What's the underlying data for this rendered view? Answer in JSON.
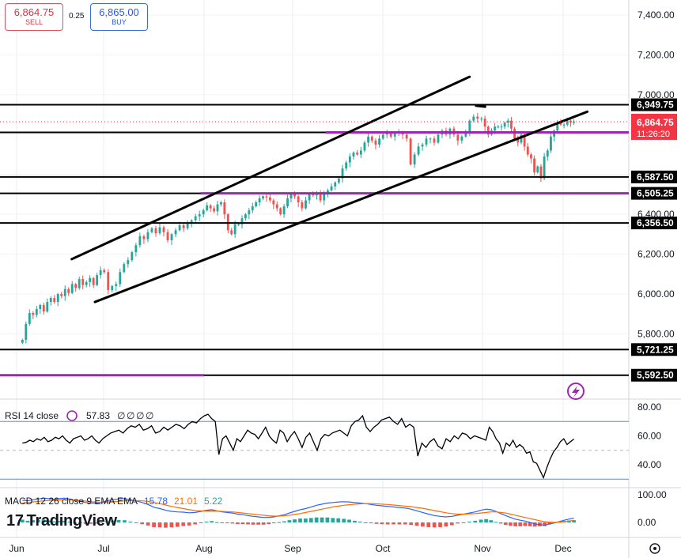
{
  "quote": {
    "sell_price": "6,864.75",
    "sell_label": "SELL",
    "spread": "0.25",
    "buy_price": "6,865.00",
    "buy_label": "BUY"
  },
  "brand": "TradingView",
  "colors": {
    "up": "#26a69a",
    "down": "#ef5350",
    "level_line": "#000000",
    "purple_level": "#9c27b0",
    "price_tag": "#f23645",
    "rsi_line": "#000000",
    "macd_line": "#2962ff",
    "signal_line": "#ff6d00"
  },
  "chart_data": [
    {
      "type": "candlestick",
      "title": "",
      "x_tick_labels": [
        "Jun",
        "Jul",
        "Aug",
        "Sep",
        "Oct",
        "Nov",
        "Dec"
      ],
      "y_tick_labels": [
        "7,400.00",
        "7,200.00",
        "7,000.00",
        "6,800.00",
        "6,600.00",
        "6,400.00",
        "6,200.00",
        "6,000.00",
        "5,800.00"
      ],
      "ylim": [
        5740,
        7460
      ],
      "grid": true,
      "price_series_close": [
        5770,
        5850,
        5905,
        5895,
        5925,
        5945,
        5912,
        5960,
        5980,
        5960,
        6000,
        5990,
        6025,
        6005,
        6050,
        6030,
        6075,
        6045,
        6060,
        6080,
        6045,
        6095,
        6120,
        6110,
        6020,
        6040,
        6050,
        6110,
        6150,
        6170,
        6210,
        6245,
        6290,
        6275,
        6310,
        6330,
        6305,
        6335,
        6310,
        6270,
        6300,
        6320,
        6345,
        6330,
        6355,
        6370,
        6390,
        6400,
        6420,
        6445,
        6430,
        6415,
        6450,
        6460,
        6400,
        6320,
        6300,
        6350,
        6350,
        6380,
        6400,
        6420,
        6440,
        6460,
        6480,
        6490,
        6485,
        6470,
        6450,
        6430,
        6400,
        6440,
        6480,
        6500,
        6490,
        6460,
        6430,
        6470,
        6500,
        6495,
        6510,
        6470,
        6500,
        6520,
        6540,
        6560,
        6580,
        6630,
        6660,
        6690,
        6710,
        6700,
        6720,
        6760,
        6790,
        6770,
        6750,
        6780,
        6800,
        6810,
        6790,
        6805,
        6810,
        6800,
        6780,
        6650,
        6700,
        6740,
        6750,
        6780,
        6780,
        6760,
        6800,
        6820,
        6800,
        6830,
        6800,
        6770,
        6790,
        6810,
        6870,
        6890,
        6880,
        6880,
        6840,
        6800,
        6820,
        6840,
        6840,
        6840,
        6860,
        6870,
        6830,
        6780,
        6760,
        6800,
        6740,
        6700,
        6680,
        6610,
        6640,
        6580,
        6690,
        6720,
        6790,
        6820,
        6860,
        6850,
        6850,
        6870,
        6860,
        6865
      ],
      "price_levels": [
        {
          "label": "6,949.75",
          "value": 6949.75,
          "color": "#000000"
        },
        {
          "label": "6,811.25",
          "value": 6811.25,
          "color": "#000000"
        },
        {
          "label": "6,587.50",
          "value": 6587.5,
          "color": "#000000"
        },
        {
          "label": "6,505.25",
          "value": 6505.25,
          "color": "#000000"
        },
        {
          "label": "6,356.50",
          "value": 6356.5,
          "color": "#000000"
        },
        {
          "label": "5,721.25",
          "value": 5721.25,
          "color": "#000000"
        },
        {
          "label": "5,592.50",
          "value": 5592.5,
          "color": "#000000"
        }
      ],
      "purple_levels": [
        6811.25,
        6505.25,
        5592.5
      ],
      "current_price": {
        "label": "6,864.75",
        "countdown": "11:26:20",
        "value": 6864.75
      },
      "trend_channel": {
        "upper": [
          {
            "date": "Jun 20",
            "value": 6175
          },
          {
            "date": "Oct 28",
            "value": 7090
          }
        ],
        "lower": [
          {
            "date": "Jun 28",
            "value": 5960
          },
          {
            "date": "Dec 10",
            "value": 6915
          }
        ],
        "middle": [
          {
            "date": "Oct 30",
            "value": 6945
          },
          {
            "date": "Nov 2",
            "value": 6940
          }
        ]
      }
    },
    {
      "type": "line",
      "title": "RSI 14 close",
      "legend_value": "57.83",
      "legend_extras": [
        "∅",
        "∅",
        "∅",
        "∅"
      ],
      "y_tick_labels": [
        "80.00",
        "60.00",
        "40.00"
      ],
      "ylim": [
        25,
        85
      ],
      "bands": [
        30,
        50,
        70
      ],
      "values": [
        55,
        55.5,
        57,
        56,
        58,
        57,
        59,
        56,
        57,
        59,
        58,
        60,
        57,
        55,
        58,
        59,
        60,
        57,
        58,
        60,
        57,
        55,
        58,
        60,
        62,
        63,
        64,
        62,
        65,
        67,
        66,
        68,
        64,
        65,
        67,
        62,
        63,
        66,
        64,
        66,
        68,
        67,
        65,
        68,
        70,
        69,
        72,
        74,
        75,
        72,
        70,
        47,
        58,
        60,
        55,
        50,
        58,
        56,
        60,
        64,
        62,
        61,
        58,
        62,
        66,
        60,
        57,
        55,
        64,
        62,
        56,
        60,
        63,
        58,
        52,
        59,
        62,
        56,
        50,
        58,
        61,
        60,
        62,
        63,
        64,
        62,
        60,
        67,
        70,
        71,
        74,
        66,
        63,
        66,
        68,
        71,
        72,
        73,
        70,
        68,
        72,
        66,
        68,
        66,
        46,
        55,
        52,
        56,
        58,
        53,
        51,
        58,
        56,
        60,
        58,
        62,
        61,
        58,
        60,
        59,
        58,
        57,
        66,
        63,
        58,
        55,
        48,
        55,
        53,
        57,
        52,
        54,
        52,
        48,
        49,
        42,
        41,
        36,
        31,
        38,
        44,
        49,
        52,
        56,
        58,
        54,
        56,
        57.83
      ],
      "grid": true
    },
    {
      "type": "macd",
      "title": "MACD 12 26 close 9 EMA EMA",
      "legend_values": [
        "15.78",
        "21.01",
        "5.22"
      ],
      "y_tick_labels": [
        "100.00",
        "0.00"
      ],
      "ylim": [
        -20,
        110
      ],
      "macd": [
        80,
        78,
        82,
        85,
        88,
        86,
        84,
        86,
        88,
        85,
        80,
        76,
        72,
        70,
        70,
        72,
        78,
        82,
        85,
        86,
        82,
        78,
        72,
        65,
        55,
        50,
        44,
        40,
        38,
        37,
        35,
        36,
        40,
        44,
        46,
        42,
        38,
        36,
        34,
        30,
        28,
        25,
        22,
        20,
        18,
        18,
        20,
        24,
        28,
        34,
        40,
        46,
        50,
        56,
        62,
        66,
        70,
        72,
        74,
        75,
        74,
        72,
        70,
        68,
        65,
        62,
        60,
        58,
        56,
        54,
        52,
        48,
        42,
        36,
        30,
        25,
        22,
        20,
        22,
        26,
        30,
        34,
        38,
        44,
        48,
        46,
        40,
        32,
        25,
        18,
        12,
        8,
        5,
        0,
        -5,
        -8,
        -10,
        -6,
        -2,
        3,
        8,
        12,
        16
      ],
      "signal": [
        70,
        72,
        74,
        76,
        78,
        79,
        80,
        81,
        82,
        82,
        81,
        79,
        77,
        75,
        74,
        73,
        74,
        75,
        76,
        78,
        79,
        79,
        78,
        76,
        72,
        68,
        63,
        58,
        54,
        50,
        46,
        43,
        42,
        41,
        41,
        41,
        40,
        39,
        38,
        36,
        34,
        32,
        30,
        28,
        26,
        24,
        23,
        23,
        24,
        26,
        29,
        32,
        36,
        40,
        44,
        48,
        52,
        56,
        59,
        62,
        64,
        66,
        67,
        68,
        68,
        67,
        66,
        65,
        63,
        61,
        59,
        57,
        54,
        51,
        47,
        43,
        39,
        35,
        32,
        30,
        30,
        31,
        32,
        34,
        36,
        38,
        38,
        36,
        34,
        30,
        26,
        22,
        18,
        14,
        10,
        6,
        3,
        1,
        0,
        1,
        3,
        5,
        8
      ],
      "histogram": [
        10,
        6,
        8,
        9,
        10,
        7,
        4,
        5,
        6,
        3,
        -1,
        -3,
        -5,
        -5,
        -4,
        -1,
        4,
        7,
        9,
        8,
        3,
        -1,
        -6,
        -11,
        -17,
        -18,
        -19,
        -18,
        -16,
        -13,
        -11,
        -7,
        -2,
        3,
        5,
        1,
        -2,
        -3,
        -4,
        -6,
        -6,
        -7,
        -8,
        -8,
        -8,
        -6,
        -3,
        1,
        4,
        8,
        11,
        14,
        14,
        16,
        18,
        18,
        18,
        16,
        15,
        13,
        10,
        6,
        3,
        0,
        -3,
        -5,
        -6,
        -7,
        -7,
        -7,
        -7,
        -9,
        -12,
        -15,
        -17,
        -18,
        -17,
        -15,
        -10,
        -4,
        0,
        3,
        6,
        10,
        12,
        8,
        2,
        -4,
        -9,
        -12,
        -14,
        -14,
        -13,
        -14,
        -15,
        -14,
        -13,
        -7,
        -2,
        2,
        5,
        7,
        8
      ]
    }
  ]
}
